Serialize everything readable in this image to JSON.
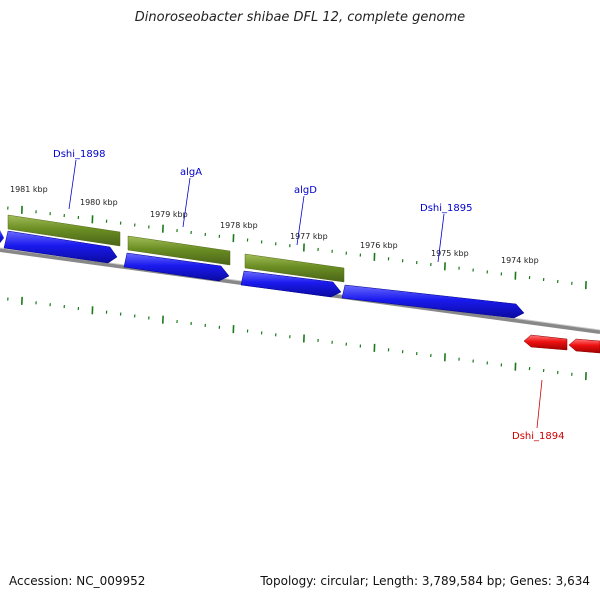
{
  "title": "Dinoroseobacter shibae DFL 12, complete genome",
  "footer": {
    "accession": "Accession: NC_009952",
    "stats": "Topology: circular; Length: 3,789,584 bp; Genes: 3,634"
  },
  "ticks": [
    "1981 kbp",
    "1980 kbp",
    "1979 kbp",
    "1978 kbp",
    "1977 kbp",
    "1976 kbp",
    "1975 kbp",
    "1974 kbp"
  ],
  "gene_labels": [
    "Dshi_1898",
    "algA",
    "algD",
    "Dshi_1895",
    "Dshi_1894"
  ],
  "colors": {
    "cds_forward": "#1a1aee",
    "gene_olive": "#6b8e23",
    "cds_reverse": "#ee1111",
    "label_blue": "#0000cc",
    "label_red": "#cc0000",
    "tick": "#1a7a1a",
    "backbone": "#808080"
  }
}
